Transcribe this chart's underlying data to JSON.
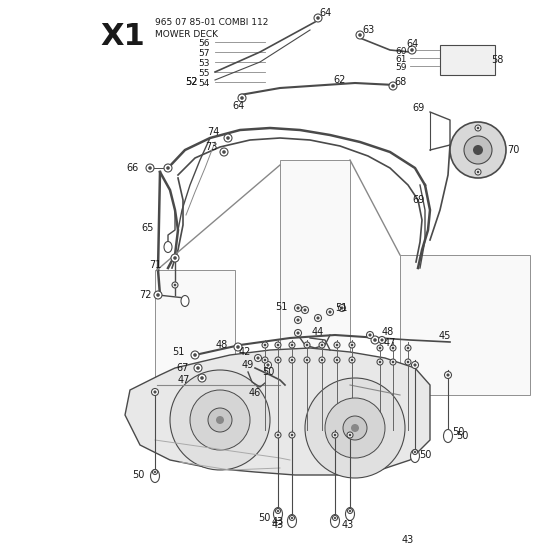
{
  "title_large": "X1",
  "title_small_line1": "965 07 85-01 COMBI 112",
  "title_small_line2": "MOWER DECK",
  "bg_color": "#ffffff",
  "line_color": "#4a4a4a",
  "light_color": "#aaaaaa",
  "fill_light": "#f0f0f0",
  "fill_mid": "#e0e0e0",
  "text_color": "#1a1a1a",
  "figsize": [
    5.6,
    5.6
  ],
  "dpi": 100
}
